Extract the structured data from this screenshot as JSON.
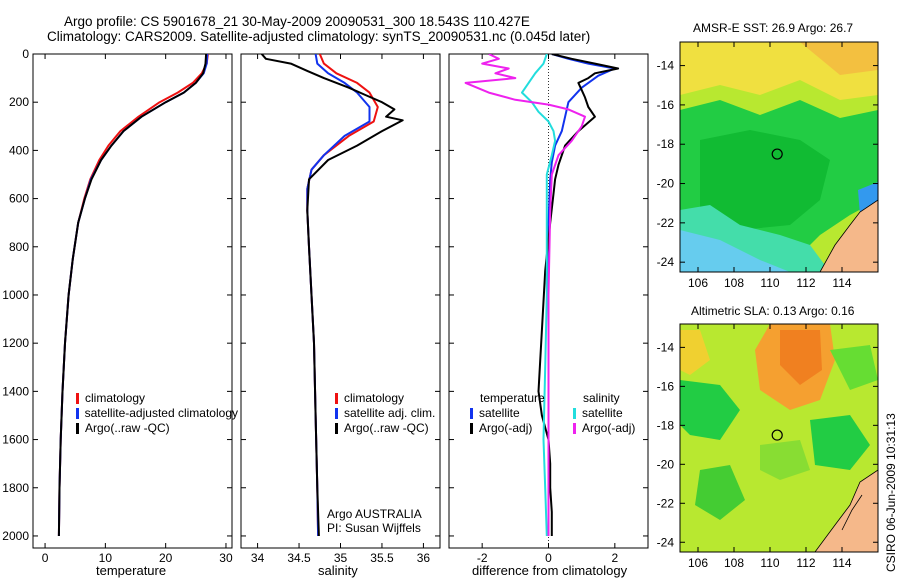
{
  "header": {
    "title_line1": "Argo profile: CS 5901678_21 30-May-2009 20090531_300 18.543S 110.427E",
    "title_line2": "Climatology: CARS2009. Satellite-adjusted climatology: synTS_20090531.nc (0.045d later)"
  },
  "colors": {
    "climatology": "#ee1111",
    "satellite": "#1133ee",
    "argo": "#000000",
    "salinity_satellite": "#22dddd",
    "salinity_argo": "#ee22ee",
    "land": "#f5b88a"
  },
  "chart_data": [
    {
      "type": "line",
      "name": "temperature-profile",
      "xlabel": "temperature",
      "ylabel": "",
      "xlim": [
        -2,
        31
      ],
      "ylim": [
        2050,
        0
      ],
      "x_ticks": [
        "0",
        "10",
        "20",
        "30"
      ],
      "x_tick_values": [
        0,
        10,
        20,
        30
      ],
      "y_ticks": [
        "0",
        "200",
        "400",
        "600",
        "800",
        "1000",
        "1200",
        "1400",
        "1600",
        "1800",
        "2000"
      ],
      "y_tick_values": [
        0,
        200,
        400,
        600,
        800,
        1000,
        1200,
        1400,
        1600,
        1800,
        2000
      ],
      "series": [
        {
          "name": "climatology",
          "color": "#ee1111",
          "x": [
            27.0,
            26.8,
            26.0,
            24.5,
            22.0,
            19.0,
            15.5,
            12.5,
            10.5,
            9.0,
            7.5,
            6.5,
            5.5,
            4.6,
            3.9,
            3.3,
            2.9,
            2.6,
            2.4,
            2.3
          ],
          "y": [
            0,
            40,
            80,
            120,
            160,
            200,
            260,
            320,
            380,
            440,
            520,
            600,
            700,
            850,
            1000,
            1200,
            1400,
            1600,
            1800,
            2000
          ]
        },
        {
          "name": "satellite-adjusted climatology",
          "color": "#1133ee",
          "x": [
            26.9,
            26.8,
            26.3,
            25.0,
            23.0,
            20.0,
            16.0,
            13.0,
            11.0,
            9.3,
            7.6,
            6.6,
            5.5,
            4.6,
            3.9,
            3.3,
            2.9,
            2.6,
            2.4,
            2.3
          ],
          "y": [
            0,
            40,
            80,
            120,
            160,
            200,
            260,
            320,
            380,
            440,
            520,
            600,
            700,
            850,
            1000,
            1200,
            1400,
            1600,
            1800,
            2000
          ]
        },
        {
          "name": "Argo(..raw -QC)",
          "color": "#000000",
          "x": [
            26.7,
            26.6,
            26.2,
            25.0,
            23.0,
            20.0,
            16.0,
            13.0,
            11.0,
            9.3,
            7.7,
            6.6,
            5.5,
            4.6,
            3.9,
            3.3,
            2.9,
            2.6,
            2.4,
            2.3
          ],
          "y": [
            0,
            40,
            80,
            120,
            160,
            200,
            260,
            320,
            380,
            440,
            520,
            600,
            700,
            850,
            1000,
            1200,
            1400,
            1600,
            1800,
            2000
          ]
        }
      ],
      "legend": [
        "climatology",
        "satellite-adjusted climatology",
        "Argo(..raw -QC)"
      ]
    },
    {
      "type": "line",
      "name": "salinity-profile",
      "xlabel": "salinity",
      "xlim": [
        33.8,
        36.2
      ],
      "ylim": [
        2050,
        0
      ],
      "x_ticks": [
        "34",
        "34.5",
        "35",
        "35.5",
        "36"
      ],
      "x_tick_values": [
        34,
        34.5,
        35,
        35.5,
        36
      ],
      "series": [
        {
          "name": "climatology",
          "color": "#ee1111",
          "x": [
            34.75,
            34.8,
            34.95,
            35.2,
            35.35,
            35.45,
            35.4,
            35.1,
            34.8,
            34.65,
            34.6,
            34.6,
            34.62,
            34.65,
            34.68,
            34.7,
            34.72,
            34.73
          ],
          "y": [
            0,
            40,
            80,
            120,
            160,
            220,
            280,
            340,
            420,
            480,
            560,
            650,
            800,
            1000,
            1200,
            1500,
            1800,
            2000
          ]
        },
        {
          "name": "satellite adj. clim.",
          "color": "#1133ee",
          "x": [
            34.7,
            34.72,
            34.85,
            35.05,
            35.2,
            35.35,
            35.35,
            35.05,
            34.8,
            34.65,
            34.6,
            34.6,
            34.62,
            34.65,
            34.68,
            34.7,
            34.72,
            34.73
          ],
          "y": [
            0,
            40,
            80,
            120,
            160,
            220,
            280,
            340,
            420,
            480,
            560,
            650,
            800,
            1000,
            1200,
            1500,
            1800,
            2000
          ]
        },
        {
          "name": "Argo(..raw -QC)",
          "color": "#000000",
          "x": [
            34.05,
            34.1,
            34.4,
            34.6,
            34.8,
            35.1,
            35.3,
            35.5,
            35.65,
            35.55,
            35.75,
            35.5,
            35.2,
            34.85,
            34.62,
            34.6,
            34.62,
            34.65,
            34.68,
            34.7,
            34.72,
            34.74
          ],
          "y": [
            0,
            20,
            40,
            70,
            100,
            140,
            170,
            200,
            230,
            260,
            275,
            320,
            380,
            440,
            520,
            650,
            800,
            1000,
            1200,
            1500,
            1800,
            2000
          ]
        }
      ],
      "legend": [
        "climatology",
        "satellite adj. clim.",
        "Argo(..raw -QC)"
      ],
      "annotation": [
        "Argo AUSTRALIA",
        "PI: Susan Wijffels"
      ]
    },
    {
      "type": "line",
      "name": "difference-profile",
      "xlabel": "difference from climatology",
      "xlim": [
        -3,
        3
      ],
      "ylim": [
        2050,
        0
      ],
      "x_ticks": [
        "-2",
        "0",
        "2"
      ],
      "x_tick_values": [
        -2,
        0,
        2
      ],
      "series": [
        {
          "name": "temperature satellite",
          "color": "#1133ee",
          "x": [
            0.1,
            0.6,
            1.2,
            2.0,
            1.5,
            1.0,
            0.6,
            0.5,
            0.4,
            0.2,
            0.1,
            0.05,
            0.0,
            0.0,
            0.0
          ],
          "y": [
            0,
            20,
            40,
            60,
            90,
            140,
            200,
            260,
            320,
            380,
            450,
            520,
            700,
            1200,
            2000
          ]
        },
        {
          "name": "temperature Argo(-adj)",
          "color": "#000000",
          "x": [
            0.1,
            0.7,
            1.4,
            2.1,
            1.4,
            1.2,
            0.9,
            1.0,
            1.1,
            1.2,
            1.4,
            0.9,
            0.5,
            0.4,
            0.3,
            0.2,
            0.15,
            0.05,
            -0.1,
            -0.3,
            -0.2,
            0.0,
            0.05,
            0.05,
            0.1,
            0.1
          ],
          "y": [
            0,
            20,
            40,
            60,
            80,
            100,
            120,
            150,
            180,
            220,
            260,
            320,
            380,
            420,
            460,
            520,
            580,
            700,
            900,
            1400,
            1500,
            1600,
            1700,
            1800,
            1900,
            2000
          ]
        },
        {
          "name": "salinity satellite",
          "color": "#22dddd",
          "x": [
            -0.05,
            -0.15,
            -0.4,
            -0.6,
            -0.8,
            -0.5,
            -0.3,
            0.0,
            0.15,
            0.2,
            0.1,
            -0.05,
            -0.05,
            -0.05,
            -0.1,
            -0.15,
            -0.1,
            -0.05
          ],
          "y": [
            0,
            40,
            80,
            120,
            160,
            200,
            240,
            280,
            320,
            360,
            420,
            500,
            700,
            1000,
            1300,
            1600,
            1800,
            2000
          ]
        },
        {
          "name": "salinity Argo(-adj)",
          "color": "#ee22ee",
          "x": [
            -1.8,
            -1.5,
            -2.0,
            -1.2,
            -1.6,
            -1.0,
            -2.5,
            -1.8,
            -1.0,
            0.0,
            0.6,
            1.1,
            1.0,
            0.7,
            0.3,
            0.1,
            0.05,
            0.0,
            0.0
          ],
          "y": [
            0,
            20,
            40,
            60,
            80,
            100,
            120,
            160,
            190,
            210,
            230,
            260,
            300,
            360,
            420,
            500,
            650,
            1000,
            2000
          ]
        }
      ],
      "legend_headers": [
        "temperature",
        "salinity"
      ],
      "legend": [
        "satellite",
        "Argo(-adj)",
        "satellite",
        "Argo(-adj)"
      ]
    },
    {
      "type": "heatmap",
      "name": "sst-map",
      "title": "AMSR-E SST: 26.9  Argo: 26.7",
      "x_ticks": [
        "106",
        "108",
        "110",
        "112",
        "114"
      ],
      "x_tick_values": [
        106,
        108,
        110,
        112,
        114
      ],
      "y_ticks": [
        "-14",
        "-16",
        "-18",
        "-20",
        "-22",
        "-24"
      ],
      "y_tick_values": [
        -14,
        -16,
        -18,
        -20,
        -22,
        -24
      ],
      "xlim": [
        105,
        116
      ],
      "ylim": [
        -24.5,
        -12.8
      ],
      "marker": [
        110.4,
        -18.5
      ]
    },
    {
      "type": "heatmap",
      "name": "sla-map",
      "title": "Altimetric SLA: 0.13  Argo: 0.16",
      "x_ticks": [
        "106",
        "108",
        "110",
        "112",
        "114"
      ],
      "x_tick_values": [
        106,
        108,
        110,
        112,
        114
      ],
      "y_ticks": [
        "-14",
        "-16",
        "-18",
        "-20",
        "-22",
        "-24"
      ],
      "y_tick_values": [
        -14,
        -16,
        -18,
        -20,
        -22,
        -24
      ],
      "xlim": [
        105,
        116
      ],
      "ylim": [
        -24.5,
        -12.8
      ],
      "marker": [
        110.4,
        -18.5
      ]
    }
  ],
  "footer": {
    "credit": "CSIRO 06-Jun-2009 10:31:13"
  }
}
